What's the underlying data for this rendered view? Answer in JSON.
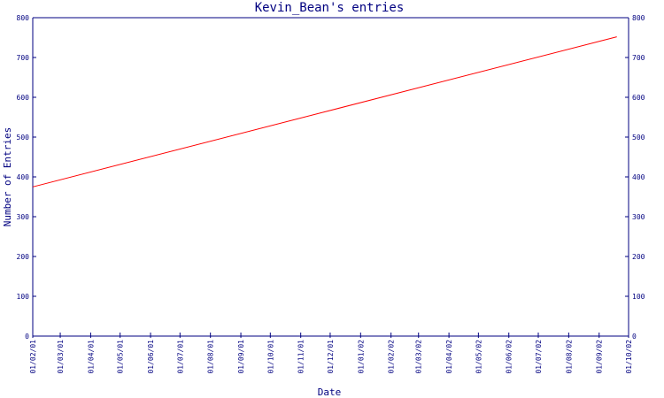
{
  "chart_data": {
    "type": "line",
    "title": "Kevin_Bean's entries",
    "xlabel": "Date",
    "ylabel": "Number of Entries",
    "ylim": [
      0,
      800
    ],
    "y_ticks": [
      "0",
      "100",
      "200",
      "300",
      "400",
      "500",
      "600",
      "700",
      "800"
    ],
    "x_ticks": [
      "01/02/01",
      "01/03/01",
      "01/04/01",
      "01/05/01",
      "01/06/01",
      "01/07/01",
      "01/08/01",
      "01/09/01",
      "01/10/01",
      "01/11/01",
      "01/12/01",
      "01/01/02",
      "01/02/02",
      "01/03/02",
      "01/04/02",
      "01/05/02",
      "01/06/02",
      "01/07/02",
      "01/08/02",
      "01/09/02",
      "01/10/02"
    ],
    "x_domain": [
      "01/02/01",
      "01/10/02"
    ],
    "grid": false,
    "series": [
      {
        "color": "#ff0000",
        "x": [
          "01/02/01",
          "01/09/02"
        ],
        "values": [
          375,
          752
        ],
        "end_offset_days": 18
      }
    ]
  }
}
